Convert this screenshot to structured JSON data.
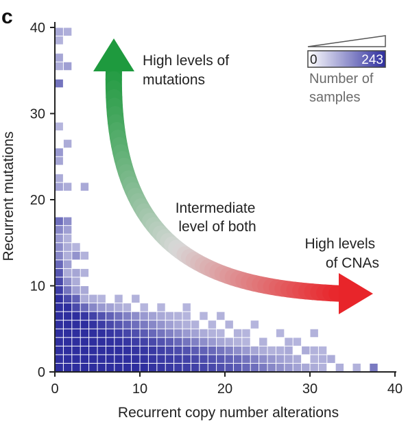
{
  "panel_label": "c",
  "chart_data": {
    "type": "heatmap",
    "xlabel": "Recurrent copy number alterations",
    "ylabel": "Recurrent mutations",
    "xlim": [
      0,
      40
    ],
    "ylim": [
      0,
      40
    ],
    "x_ticks": [
      "0",
      "10",
      "20",
      "30",
      "40"
    ],
    "y_ticks": [
      "0",
      "10",
      "20",
      "30",
      "40"
    ],
    "grid": false,
    "colorbar": {
      "min_label": "0",
      "max_label": "243",
      "min": 0,
      "max": 243,
      "title": "Number of samples",
      "low_color": "#ffffff",
      "high_color": "#2e2e9e"
    },
    "annotations": {
      "high_mutations": "High levels of mutations",
      "intermediate": "Intermediate level of both",
      "high_cnas": "High levels of CNAs"
    },
    "arrow_colors": {
      "mutations": "#1e9a3e",
      "middle": "#d8d8d8",
      "cnas": "#e8252a"
    },
    "cells": [
      [
        0,
        0,
        243
      ],
      [
        1,
        0,
        243
      ],
      [
        2,
        0,
        243
      ],
      [
        3,
        0,
        243
      ],
      [
        4,
        0,
        243
      ],
      [
        5,
        0,
        243
      ],
      [
        6,
        0,
        243
      ],
      [
        7,
        0,
        243
      ],
      [
        8,
        0,
        243
      ],
      [
        9,
        0,
        243
      ],
      [
        10,
        0,
        240
      ],
      [
        11,
        0,
        235
      ],
      [
        12,
        0,
        230
      ],
      [
        13,
        0,
        225
      ],
      [
        14,
        0,
        220
      ],
      [
        15,
        0,
        215
      ],
      [
        16,
        0,
        210
      ],
      [
        17,
        0,
        205
      ],
      [
        18,
        0,
        200
      ],
      [
        19,
        0,
        190
      ],
      [
        20,
        0,
        180
      ],
      [
        21,
        0,
        170
      ],
      [
        22,
        0,
        150
      ],
      [
        23,
        0,
        140
      ],
      [
        24,
        0,
        120
      ],
      [
        25,
        0,
        100
      ],
      [
        26,
        0,
        85
      ],
      [
        27,
        0,
        70
      ],
      [
        28,
        0,
        55
      ],
      [
        29,
        0,
        45
      ],
      [
        30,
        0,
        40
      ],
      [
        31,
        0,
        30
      ],
      [
        33,
        0,
        35
      ],
      [
        35,
        0,
        30
      ],
      [
        37,
        0,
        120
      ],
      [
        0,
        1,
        243
      ],
      [
        1,
        1,
        243
      ],
      [
        2,
        1,
        243
      ],
      [
        3,
        1,
        243
      ],
      [
        4,
        1,
        243
      ],
      [
        5,
        1,
        243
      ],
      [
        6,
        1,
        243
      ],
      [
        7,
        1,
        243
      ],
      [
        8,
        1,
        243
      ],
      [
        9,
        1,
        240
      ],
      [
        10,
        1,
        235
      ],
      [
        11,
        1,
        230
      ],
      [
        12,
        1,
        225
      ],
      [
        13,
        1,
        220
      ],
      [
        14,
        1,
        215
      ],
      [
        15,
        1,
        210
      ],
      [
        16,
        1,
        200
      ],
      [
        17,
        1,
        195
      ],
      [
        18,
        1,
        185
      ],
      [
        19,
        1,
        175
      ],
      [
        20,
        1,
        160
      ],
      [
        21,
        1,
        150
      ],
      [
        22,
        1,
        130
      ],
      [
        23,
        1,
        110
      ],
      [
        24,
        1,
        90
      ],
      [
        25,
        1,
        75
      ],
      [
        26,
        1,
        60
      ],
      [
        27,
        1,
        50
      ],
      [
        28,
        1,
        40
      ],
      [
        30,
        1,
        30
      ],
      [
        31,
        1,
        35
      ],
      [
        32,
        1,
        40
      ],
      [
        0,
        2,
        243
      ],
      [
        1,
        2,
        243
      ],
      [
        2,
        2,
        243
      ],
      [
        3,
        2,
        243
      ],
      [
        4,
        2,
        243
      ],
      [
        5,
        2,
        243
      ],
      [
        6,
        2,
        243
      ],
      [
        7,
        2,
        243
      ],
      [
        8,
        2,
        240
      ],
      [
        9,
        2,
        235
      ],
      [
        10,
        2,
        230
      ],
      [
        11,
        2,
        225
      ],
      [
        12,
        2,
        215
      ],
      [
        13,
        2,
        205
      ],
      [
        14,
        2,
        195
      ],
      [
        15,
        2,
        185
      ],
      [
        16,
        2,
        170
      ],
      [
        17,
        2,
        160
      ],
      [
        18,
        2,
        150
      ],
      [
        19,
        2,
        130
      ],
      [
        20,
        2,
        110
      ],
      [
        21,
        2,
        90
      ],
      [
        22,
        2,
        70
      ],
      [
        23,
        2,
        50
      ],
      [
        24,
        2,
        40
      ],
      [
        25,
        2,
        30
      ],
      [
        26,
        2,
        35
      ],
      [
        27,
        2,
        45
      ],
      [
        29,
        2,
        40
      ],
      [
        30,
        2,
        30
      ],
      [
        31,
        2,
        25
      ],
      [
        0,
        3,
        243
      ],
      [
        1,
        3,
        243
      ],
      [
        2,
        3,
        243
      ],
      [
        3,
        3,
        243
      ],
      [
        4,
        3,
        243
      ],
      [
        5,
        3,
        243
      ],
      [
        6,
        3,
        240
      ],
      [
        7,
        3,
        235
      ],
      [
        8,
        3,
        230
      ],
      [
        9,
        3,
        220
      ],
      [
        10,
        3,
        210
      ],
      [
        11,
        3,
        200
      ],
      [
        12,
        3,
        185
      ],
      [
        13,
        3,
        170
      ],
      [
        14,
        3,
        150
      ],
      [
        15,
        3,
        130
      ],
      [
        16,
        3,
        110
      ],
      [
        17,
        3,
        90
      ],
      [
        18,
        3,
        70
      ],
      [
        19,
        3,
        50
      ],
      [
        20,
        3,
        40
      ],
      [
        21,
        3,
        30
      ],
      [
        22,
        3,
        25
      ],
      [
        24,
        3,
        30
      ],
      [
        27,
        3,
        30
      ],
      [
        28,
        3,
        25
      ],
      [
        0,
        4,
        243
      ],
      [
        1,
        4,
        243
      ],
      [
        2,
        4,
        243
      ],
      [
        3,
        4,
        243
      ],
      [
        4,
        4,
        243
      ],
      [
        5,
        4,
        240
      ],
      [
        6,
        4,
        230
      ],
      [
        7,
        4,
        220
      ],
      [
        8,
        4,
        205
      ],
      [
        9,
        4,
        190
      ],
      [
        10,
        4,
        170
      ],
      [
        11,
        4,
        150
      ],
      [
        12,
        4,
        130
      ],
      [
        13,
        4,
        110
      ],
      [
        14,
        4,
        90
      ],
      [
        15,
        4,
        70
      ],
      [
        16,
        4,
        55
      ],
      [
        17,
        4,
        40
      ],
      [
        18,
        4,
        30
      ],
      [
        19,
        4,
        25
      ],
      [
        21,
        4,
        30
      ],
      [
        22,
        4,
        25
      ],
      [
        26,
        4,
        25
      ],
      [
        30,
        4,
        30
      ],
      [
        0,
        5,
        243
      ],
      [
        1,
        5,
        243
      ],
      [
        2,
        5,
        243
      ],
      [
        3,
        5,
        243
      ],
      [
        4,
        5,
        235
      ],
      [
        5,
        5,
        220
      ],
      [
        6,
        5,
        200
      ],
      [
        7,
        5,
        180
      ],
      [
        8,
        5,
        160
      ],
      [
        9,
        5,
        140
      ],
      [
        10,
        5,
        120
      ],
      [
        11,
        5,
        100
      ],
      [
        12,
        5,
        80
      ],
      [
        13,
        5,
        60
      ],
      [
        14,
        5,
        45
      ],
      [
        15,
        5,
        35
      ],
      [
        16,
        5,
        30
      ],
      [
        18,
        5,
        25
      ],
      [
        20,
        5,
        30
      ],
      [
        23,
        5,
        25
      ],
      [
        0,
        6,
        243
      ],
      [
        1,
        6,
        243
      ],
      [
        2,
        6,
        243
      ],
      [
        3,
        6,
        230
      ],
      [
        4,
        6,
        210
      ],
      [
        5,
        6,
        185
      ],
      [
        6,
        6,
        160
      ],
      [
        7,
        6,
        135
      ],
      [
        8,
        6,
        110
      ],
      [
        9,
        6,
        90
      ],
      [
        10,
        6,
        70
      ],
      [
        11,
        6,
        55
      ],
      [
        12,
        6,
        45
      ],
      [
        13,
        6,
        35
      ],
      [
        14,
        6,
        30
      ],
      [
        15,
        6,
        25
      ],
      [
        17,
        6,
        25
      ],
      [
        19,
        6,
        30
      ],
      [
        0,
        7,
        243
      ],
      [
        1,
        7,
        243
      ],
      [
        2,
        7,
        200
      ],
      [
        3,
        7,
        150
      ],
      [
        4,
        7,
        100
      ],
      [
        5,
        7,
        70
      ],
      [
        6,
        7,
        55
      ],
      [
        7,
        7,
        40
      ],
      [
        8,
        7,
        30
      ],
      [
        10,
        7,
        25
      ],
      [
        12,
        7,
        25
      ],
      [
        15,
        7,
        25
      ],
      [
        0,
        8,
        243
      ],
      [
        1,
        8,
        200
      ],
      [
        2,
        8,
        160
      ],
      [
        3,
        8,
        40
      ],
      [
        4,
        8,
        35
      ],
      [
        5,
        8,
        25
      ],
      [
        7,
        8,
        30
      ],
      [
        9,
        8,
        30
      ],
      [
        0,
        9,
        220
      ],
      [
        1,
        9,
        130
      ],
      [
        2,
        9,
        60
      ],
      [
        3,
        9,
        45
      ],
      [
        0,
        10,
        200
      ],
      [
        1,
        10,
        90
      ],
      [
        2,
        10,
        40
      ],
      [
        0,
        11,
        180
      ],
      [
        1,
        11,
        40
      ],
      [
        2,
        11,
        50
      ],
      [
        3,
        11,
        30
      ],
      [
        0,
        12,
        150
      ],
      [
        1,
        12,
        60
      ],
      [
        0,
        13,
        100
      ],
      [
        1,
        13,
        35
      ],
      [
        2,
        13,
        80
      ],
      [
        3,
        13,
        30
      ],
      [
        0,
        14,
        90
      ],
      [
        1,
        14,
        40
      ],
      [
        2,
        14,
        25
      ],
      [
        0,
        15,
        70
      ],
      [
        1,
        15,
        30
      ],
      [
        0,
        16,
        100
      ],
      [
        1,
        16,
        60
      ],
      [
        0,
        17,
        140
      ],
      [
        1,
        17,
        90
      ],
      [
        0,
        21,
        55
      ],
      [
        1,
        21,
        40
      ],
      [
        3,
        21,
        45
      ],
      [
        0,
        22,
        40
      ],
      [
        0,
        24,
        50
      ],
      [
        0,
        25,
        70
      ],
      [
        1,
        26,
        40
      ],
      [
        0,
        28,
        25
      ],
      [
        0,
        33,
        130
      ],
      [
        0,
        35,
        40
      ],
      [
        1,
        35,
        60
      ],
      [
        0,
        36,
        50
      ],
      [
        0,
        38,
        30
      ],
      [
        0,
        39,
        45
      ],
      [
        1,
        39,
        35
      ]
    ]
  }
}
